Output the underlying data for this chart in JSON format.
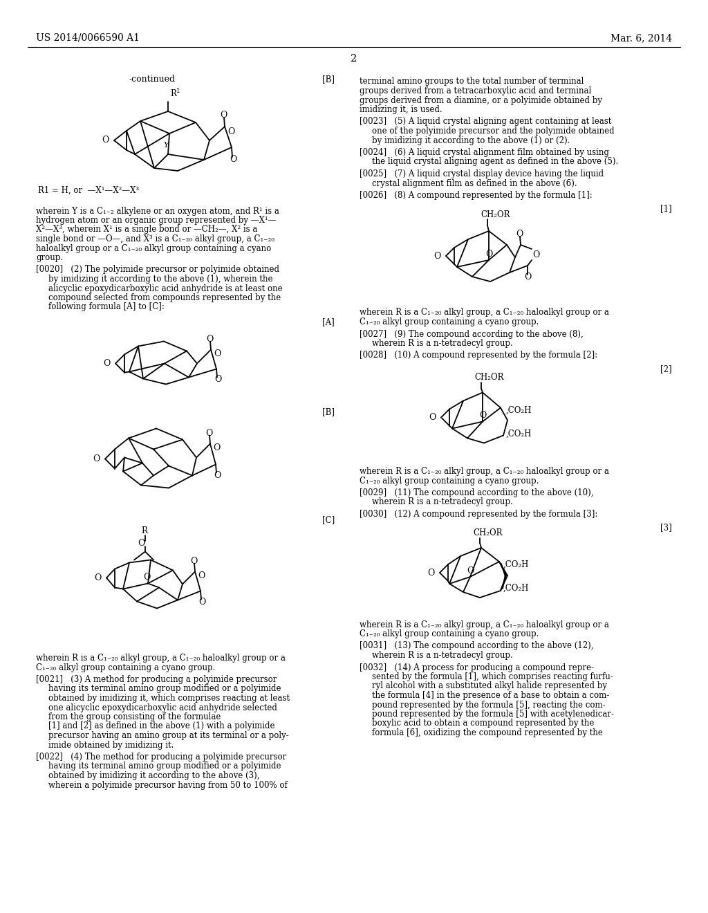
{
  "bg": "#ffffff",
  "header_left": "US 2014/0066590 A1",
  "header_right": "Mar. 6, 2014",
  "page_num": "2"
}
